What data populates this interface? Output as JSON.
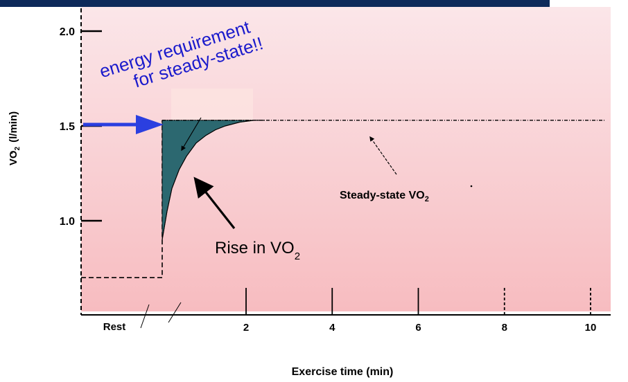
{
  "chart_data": {
    "type": "area",
    "xlabel": "Exercise time (min)",
    "ylabel_main": "VO",
    "ylabel_sub": "2",
    "ylabel_unit": "(l/min)",
    "ylim": [
      0.5,
      2.2
    ],
    "y_ticks": [
      {
        "value": 1.0,
        "label": "1.0"
      },
      {
        "value": 1.5,
        "label": "1.5"
      },
      {
        "value": 2.0,
        "label": "2.0"
      }
    ],
    "x_ticks": [
      {
        "value": 2,
        "label": "2"
      },
      {
        "value": 4,
        "label": "4"
      },
      {
        "value": 6,
        "label": "6"
      },
      {
        "value": 8,
        "label": "8"
      },
      {
        "value": 10,
        "label": "10"
      }
    ],
    "rest_label": "Rest",
    "rest_vo2": 0.7,
    "steady_state_vo2": 1.53,
    "series": [
      {
        "x": [
          0,
          0.1,
          0.2,
          0.35,
          0.5,
          0.7,
          0.9,
          1.1,
          1.3,
          1.6,
          1.9,
          2.1
        ],
        "values": [
          0.9,
          1.05,
          1.17,
          1.27,
          1.34,
          1.41,
          1.45,
          1.48,
          1.5,
          1.52,
          1.53,
          1.53
        ]
      }
    ],
    "annotations": {
      "steady_state_label": "Steady-state VO",
      "steady_state_sub": "2",
      "rise_label": "Rise in VO",
      "rise_sub": "2",
      "energy_line1": "energy requirement",
      "energy_line2": "for steady-state!!"
    }
  },
  "colors": {
    "top_bar": "#0d2a5a",
    "deficit_fill": "#2c6870",
    "annotation_blue": "#1a1acc",
    "arrow_blue": "#2b3fe0",
    "panel_top": "#fbe6e9",
    "panel_bottom": "#f7bcc0"
  }
}
